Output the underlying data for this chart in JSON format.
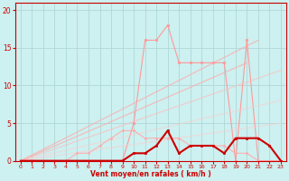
{
  "bg_color": "#cdf0f0",
  "grid_color": "#b0d8d8",
  "xlabel": "Vent moyen/en rafales ( km/h )",
  "xlabel_color": "#cc0000",
  "tick_color": "#cc0000",
  "xlim": [
    -0.5,
    23.5
  ],
  "ylim": [
    0,
    21
  ],
  "yticks": [
    0,
    5,
    10,
    15,
    20
  ],
  "xticks": [
    0,
    1,
    2,
    3,
    4,
    5,
    6,
    7,
    8,
    9,
    10,
    11,
    12,
    13,
    14,
    15,
    16,
    17,
    18,
    19,
    20,
    21,
    22,
    23
  ],
  "lines": [
    {
      "x": [
        0,
        1,
        2,
        3,
        4,
        5,
        6,
        7,
        8,
        9,
        10,
        11,
        12,
        13,
        14,
        15,
        16,
        17,
        18,
        19,
        20,
        21,
        22,
        23
      ],
      "y": [
        0,
        0,
        0,
        0,
        0,
        0,
        0,
        0,
        0,
        0,
        5,
        16,
        16,
        18,
        13,
        13,
        13,
        13,
        13,
        0,
        16,
        0,
        0,
        0
      ],
      "color": "#ff9999",
      "alpha": 1.0,
      "lw": 0.8,
      "marker": "o",
      "ms": 1.8
    },
    {
      "x": [
        0,
        20
      ],
      "y": [
        0,
        13
      ],
      "color": "#ffaaaa",
      "alpha": 0.8,
      "lw": 0.8,
      "marker": null
    },
    {
      "x": [
        0,
        21
      ],
      "y": [
        0,
        16
      ],
      "color": "#ffaaaa",
      "alpha": 0.8,
      "lw": 0.8,
      "marker": null
    },
    {
      "x": [
        0,
        23
      ],
      "y": [
        0,
        12
      ],
      "color": "#ffbbbb",
      "alpha": 0.7,
      "lw": 0.8,
      "marker": null
    },
    {
      "x": [
        0,
        23
      ],
      "y": [
        0,
        8
      ],
      "color": "#ffcccc",
      "alpha": 0.6,
      "lw": 0.8,
      "marker": null
    },
    {
      "x": [
        0,
        23
      ],
      "y": [
        0,
        5
      ],
      "color": "#ffcccc",
      "alpha": 0.6,
      "lw": 0.8,
      "marker": null
    },
    {
      "x": [
        0,
        1,
        2,
        3,
        4,
        5,
        6,
        7,
        8,
        9,
        10,
        11,
        12,
        13,
        14,
        15,
        16,
        17,
        18,
        19,
        20,
        21,
        22,
        23
      ],
      "y": [
        0,
        0,
        0,
        0,
        0,
        1,
        1,
        2,
        3,
        4,
        4,
        3,
        3,
        3,
        3,
        2,
        2,
        2,
        2,
        1,
        1,
        0,
        0,
        0
      ],
      "color": "#ffaaaa",
      "alpha": 0.9,
      "lw": 0.8,
      "marker": "o",
      "ms": 1.5
    },
    {
      "x": [
        0,
        1,
        2,
        3,
        4,
        5,
        6,
        7,
        8,
        9,
        10,
        11,
        12,
        13,
        14,
        15,
        16,
        17,
        18,
        19,
        20,
        21,
        22,
        23
      ],
      "y": [
        0,
        0,
        0,
        0,
        0,
        0,
        0,
        0,
        0,
        0,
        1,
        1,
        2,
        4,
        1,
        2,
        2,
        2,
        1,
        3,
        3,
        3,
        2,
        0
      ],
      "color": "#cc0000",
      "alpha": 1.0,
      "lw": 1.5,
      "marker": "s",
      "ms": 2.0
    },
    {
      "x": [
        0,
        23
      ],
      "y": [
        0,
        0
      ],
      "color": "#ff0000",
      "alpha": 0.7,
      "lw": 0.7,
      "marker": null
    }
  ]
}
